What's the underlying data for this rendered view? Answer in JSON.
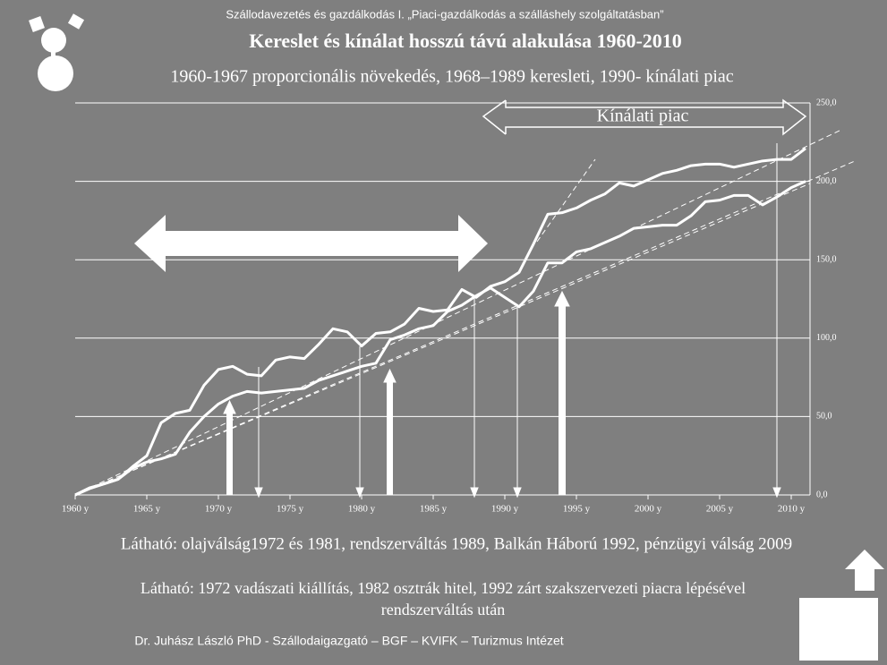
{
  "header": "Szállodavezetés és gazdálkodás I. „Piaci-gazdálkodás a szálláshely szolgáltatásban”",
  "footer": "Dr. Juhász László PhD - Szállodaigazgató – BGF – KVIFK – Turizmus Intézet",
  "notes": [
    "Látható: olajválság1972 és 1981, rendszerváltás 1989, Balkán Háború 1992, pénzügyi válság 2009",
    "Látható: 1972 vadászati kiállítás, 1982 osztrák hitel, 1992 zárt szakszervezeti piacra lépésével",
    "rendszerváltás után"
  ],
  "chart_data": {
    "type": "line",
    "title": "Kereslet és kínálat  hosszú távú alakulása 1960-2010",
    "subtitle": "1960-1967 proporcionális növekedés, 1968–1989 keresleti, 1990-  kínálati piac",
    "annotations": [
      "Kínálati piac"
    ],
    "categories": [
      "1960 y",
      null,
      null,
      null,
      null,
      "1965 y",
      null,
      null,
      null,
      null,
      "1970 y",
      null,
      null,
      null,
      null,
      "1975 y",
      null,
      null,
      null,
      null,
      "1980 y",
      null,
      null,
      null,
      null,
      "1985 y",
      null,
      null,
      null,
      null,
      "1990 y",
      null,
      null,
      null,
      null,
      "1995 y",
      null,
      null,
      null,
      null,
      "2000 y",
      null,
      null,
      null,
      null,
      "2005 y",
      null,
      null,
      null,
      null,
      "2010 y",
      null
    ],
    "series": [
      {
        "color": "#ffffff",
        "values": [
          0,
          4.5,
          7,
          10,
          18,
          25,
          46,
          52,
          54,
          70,
          80,
          82,
          77,
          76,
          86,
          88,
          87,
          96,
          106,
          104,
          95,
          103,
          104,
          109,
          119,
          117,
          118,
          131,
          126,
          133,
          136,
          142,
          160,
          179,
          180,
          183,
          188,
          192,
          199,
          197,
          201,
          205,
          207,
          210,
          211,
          211,
          209,
          211,
          213,
          214,
          214,
          221
        ]
      },
      {
        "color": "#ffffff",
        "values": [
          0,
          4,
          7,
          10,
          17,
          21,
          23,
          26,
          40,
          50,
          58,
          63,
          66,
          65,
          66,
          67,
          68,
          73,
          76,
          79,
          82,
          84,
          99,
          102,
          106,
          108,
          117,
          121,
          127,
          132,
          126,
          120,
          130,
          148,
          148,
          155,
          157,
          161,
          165,
          170,
          171,
          172,
          172,
          178,
          187,
          188,
          191,
          191,
          185,
          190,
          196,
          200
        ]
      }
    ],
    "ylim": [
      0,
      250
    ],
    "yticks": [
      {
        "value": 0,
        "label": "0,0"
      },
      {
        "value": 50,
        "label": "50,0"
      },
      {
        "value": 100,
        "label": "100,0"
      },
      {
        "value": 150,
        "label": "150,0"
      },
      {
        "value": 200,
        "label": "200,0"
      },
      {
        "value": 250,
        "label": "250,0"
      }
    ],
    "grid": true
  }
}
